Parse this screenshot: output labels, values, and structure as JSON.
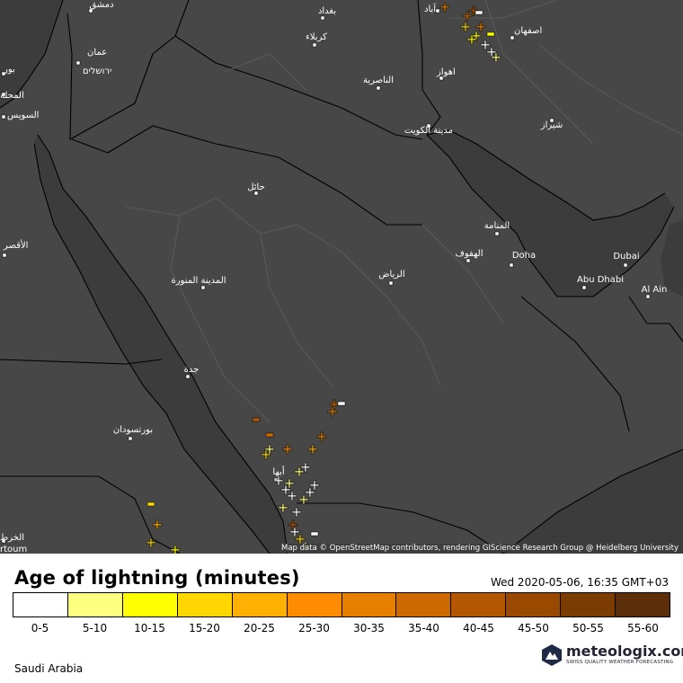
{
  "map": {
    "attribution": "Map data © OpenStreetMap contributors, rendering GIScience Research Group @ Heidelberg University",
    "cities": [
      {
        "label": "دمشق"
      },
      {
        "label": "بغداد"
      },
      {
        "label": "آباد"
      },
      {
        "label": "عمان"
      },
      {
        "label": "ירושלים"
      },
      {
        "label": "كربلاء"
      },
      {
        "label": "اصفهان"
      },
      {
        "label": "اهواز"
      },
      {
        "label": "الناصرية"
      },
      {
        "label": "بور"
      },
      {
        "label": "المحلة"
      },
      {
        "label": "السويس"
      },
      {
        "label": "مدينة الكويت"
      },
      {
        "label": "شيراز"
      },
      {
        "label": "حائل"
      },
      {
        "label": "المنامة"
      },
      {
        "label": "الأقصر"
      },
      {
        "label": "الهفوف"
      },
      {
        "label": "Doha"
      },
      {
        "label": "Dubai"
      },
      {
        "label": "الرياض"
      },
      {
        "label": "المدينة المنورة"
      },
      {
        "label": "Abu Dhabi"
      },
      {
        "label": "Al Ain"
      },
      {
        "label": "جدة"
      },
      {
        "label": "بورتسودان"
      },
      {
        "label": "أبها"
      },
      {
        "label": "الخرط"
      },
      {
        "label": "rtoum"
      }
    ]
  },
  "legend": {
    "title": "Age of lightning (minutes)",
    "timestamp": "Wed 2020-05-06, 16:35 GMT+03",
    "colors": [
      "#ffffff",
      "#ffff80",
      "#ffff00",
      "#ffd700",
      "#ffb000",
      "#ff8c00",
      "#e67e00",
      "#cc6a00",
      "#b35800",
      "#994a00",
      "#7a3c00",
      "#5c2e0a"
    ],
    "labels": [
      "0-5",
      "5-10",
      "10-15",
      "15-20",
      "20-25",
      "25-30",
      "30-35",
      "35-40",
      "40-45",
      "45-50",
      "50-55",
      "55-60"
    ]
  },
  "footer": {
    "region": "Saudi Arabia",
    "brand_name": "meteologix.com",
    "brand_tagline": "SWISS QUALITY WEATHER FORECASTING"
  }
}
